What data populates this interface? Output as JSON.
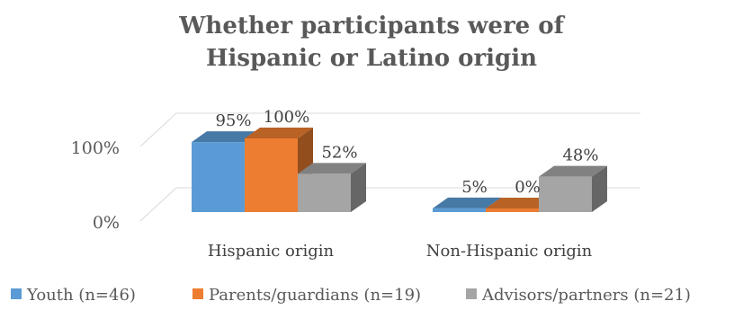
{
  "chart_data": {
    "type": "bar",
    "title_lines": [
      "Whether participants were of",
      "Hispanic or Latino origin"
    ],
    "categories": [
      "Hispanic origin",
      "Non-Hispanic origin"
    ],
    "series": [
      {
        "name": "Youth (n=46)",
        "color": "#5b9bd5",
        "values": [
          95,
          5
        ],
        "labels": [
          "95%",
          "5%"
        ]
      },
      {
        "name": "Parents/guardians (n=19)",
        "color": "#ed7d31",
        "values": [
          100,
          0
        ],
        "labels": [
          "100%",
          "0%"
        ]
      },
      {
        "name": "Advisors/partners (n=21)",
        "color": "#a5a5a5",
        "values": [
          52,
          48
        ],
        "labels": [
          "52%",
          "48%"
        ]
      }
    ],
    "y_ticks": [
      "0%",
      "100%"
    ],
    "ylim": [
      0,
      100
    ],
    "grid": true,
    "legend_position": "bottom",
    "style": "3d-clustered-column"
  }
}
